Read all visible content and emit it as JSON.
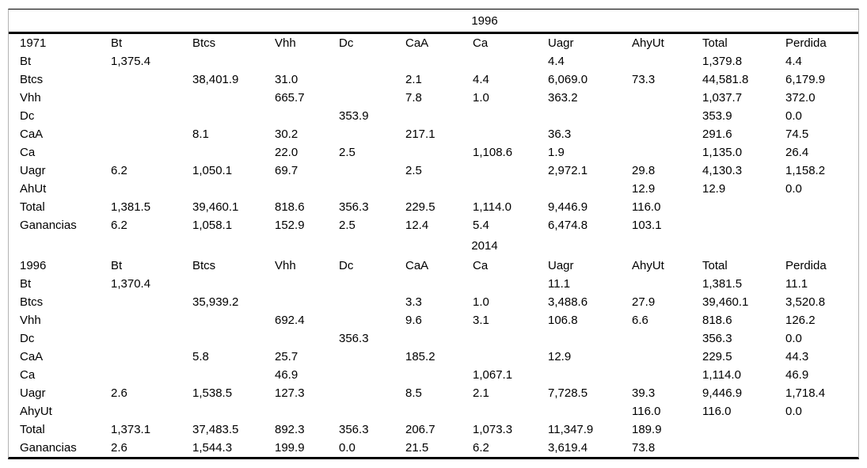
{
  "table": {
    "sections": [
      {
        "caption": "1996",
        "row_header": "1971",
        "columns": [
          "Bt",
          "Btcs",
          "Vhh",
          "Dc",
          "CaA",
          "Ca",
          "Uagr",
          "AhyUt",
          "Total",
          "Perdida"
        ],
        "rows": [
          {
            "label": "Bt",
            "cells": [
              "1,375.4",
              "",
              "",
              "",
              "",
              "",
              "4.4",
              "",
              "1,379.8",
              "4.4"
            ]
          },
          {
            "label": "Btcs",
            "cells": [
              "",
              "38,401.9",
              "31.0",
              "",
              "2.1",
              "4.4",
              "6,069.0",
              "73.3",
              "44,581.8",
              "6,179.9"
            ]
          },
          {
            "label": "Vhh",
            "cells": [
              "",
              "",
              "665.7",
              "",
              "7.8",
              "1.0",
              "363.2",
              "",
              "1,037.7",
              "372.0"
            ]
          },
          {
            "label": "Dc",
            "cells": [
              "",
              "",
              "",
              "353.9",
              "",
              "",
              "",
              "",
              "353.9",
              "0.0"
            ]
          },
          {
            "label": "CaA",
            "cells": [
              "",
              "8.1",
              "30.2",
              "",
              "217.1",
              "",
              "36.3",
              "",
              "291.6",
              "74.5"
            ]
          },
          {
            "label": "Ca",
            "cells": [
              "",
              "",
              "22.0",
              "2.5",
              "",
              "1,108.6",
              "1.9",
              "",
              "1,135.0",
              "26.4"
            ]
          },
          {
            "label": "Uagr",
            "cells": [
              "6.2",
              "1,050.1",
              "69.7",
              "",
              "2.5",
              "",
              "2,972.1",
              "29.8",
              "4,130.3",
              "1,158.2"
            ]
          },
          {
            "label": "AhUt",
            "cells": [
              "",
              "",
              "",
              "",
              "",
              "",
              "",
              "12.9",
              "12.9",
              "0.0"
            ]
          },
          {
            "label": "Total",
            "cells": [
              "1,381.5",
              "39,460.1",
              "818.6",
              "356.3",
              "229.5",
              "1,114.0",
              "9,446.9",
              "116.0",
              "",
              ""
            ]
          },
          {
            "label": "Ganancias",
            "cells": [
              "6.2",
              "1,058.1",
              "152.9",
              "2.5",
              "12.4",
              "5.4",
              "6,474.8",
              "103.1",
              "",
              ""
            ]
          }
        ]
      },
      {
        "caption": "2014",
        "row_header": "1996",
        "columns": [
          "Bt",
          "Btcs",
          "Vhh",
          "Dc",
          "CaA",
          "Ca",
          "Uagr",
          "AhyUt",
          "Total",
          "Perdida"
        ],
        "rows": [
          {
            "label": "Bt",
            "cells": [
              "1,370.4",
              "",
              "",
              "",
              "",
              "",
              "11.1",
              "",
              "1,381.5",
              "11.1"
            ]
          },
          {
            "label": "Btcs",
            "cells": [
              "",
              "35,939.2",
              "",
              "",
              "3.3",
              "1.0",
              "3,488.6",
              "27.9",
              "39,460.1",
              "3,520.8"
            ]
          },
          {
            "label": "Vhh",
            "cells": [
              "",
              "",
              "692.4",
              "",
              "9.6",
              "3.1",
              "106.8",
              "6.6",
              "818.6",
              "126.2"
            ]
          },
          {
            "label": "Dc",
            "cells": [
              "",
              "",
              "",
              "356.3",
              "",
              "",
              "",
              "",
              "356.3",
              "0.0"
            ]
          },
          {
            "label": "CaA",
            "cells": [
              "",
              "5.8",
              "25.7",
              "",
              "185.2",
              "",
              "12.9",
              "",
              "229.5",
              "44.3"
            ]
          },
          {
            "label": "Ca",
            "cells": [
              "",
              "",
              "46.9",
              "",
              "",
              "1,067.1",
              "",
              "",
              "1,114.0",
              "46.9"
            ]
          },
          {
            "label": "Uagr",
            "cells": [
              "2.6",
              "1,538.5",
              "127.3",
              "",
              "8.5",
              "2.1",
              "7,728.5",
              "39.3",
              "9,446.9",
              "1,718.4"
            ]
          },
          {
            "label": "AhyUt",
            "cells": [
              "",
              "",
              "",
              "",
              "",
              "",
              "",
              "116.0",
              "116.0",
              "0.0"
            ]
          },
          {
            "label": "Total",
            "cells": [
              "1,373.1",
              "37,483.5",
              "892.3",
              "356.3",
              "206.7",
              "1,073.3",
              "11,347.9",
              "189.9",
              "",
              ""
            ]
          },
          {
            "label": "Ganancias",
            "cells": [
              "2.6",
              "1,544.3",
              "199.9",
              "0.0",
              "21.5",
              "6.2",
              "3,619.4",
              "73.8",
              "",
              ""
            ]
          }
        ]
      }
    ]
  }
}
